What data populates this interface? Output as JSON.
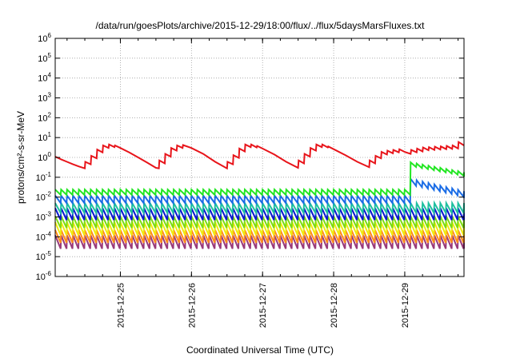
{
  "chart_data": {
    "type": "line",
    "title": "/data/run/goesPlots/archive/2015-12-29/18:00/flux/../flux/5daysMarsFluxes.txt",
    "xlabel": "Coordinated Universal Time (UTC)",
    "ylabel": "protons/cm²-s-sr-MeV",
    "yscale": "log",
    "ylim": [
      1e-06,
      1000000.0
    ],
    "y_ticks": [
      {
        "value": 1e-06,
        "base": "10",
        "exp": "-6"
      },
      {
        "value": 1e-05,
        "base": "10",
        "exp": "-5"
      },
      {
        "value": 0.0001,
        "base": "10",
        "exp": "-4"
      },
      {
        "value": 0.001,
        "base": "10",
        "exp": "-3"
      },
      {
        "value": 0.01,
        "base": "10",
        "exp": "-2"
      },
      {
        "value": 0.1,
        "base": "10",
        "exp": "-1"
      },
      {
        "value": 1,
        "base": "10",
        "exp": "0"
      },
      {
        "value": 10,
        "base": "10",
        "exp": "1"
      },
      {
        "value": 100,
        "base": "10",
        "exp": "2"
      },
      {
        "value": 1000,
        "base": "10",
        "exp": "3"
      },
      {
        "value": 10000,
        "base": "10",
        "exp": "4"
      },
      {
        "value": 100000,
        "base": "10",
        "exp": "5"
      },
      {
        "value": 1000000,
        "base": "10",
        "exp": "6"
      }
    ],
    "xlim": [
      "2015-12-24 02:00",
      "2015-12-29 20:00"
    ],
    "x_ticks": [
      "2015-12-25",
      "2015-12-26",
      "2015-12-27",
      "2015-12-28",
      "2015-12-29"
    ],
    "grid": true,
    "series": [
      {
        "color": "#e8141a",
        "x": [
          "2015-12-24 02:00",
          "2015-12-24 04:00",
          "2015-12-24 06:00",
          "2015-12-24 08:00",
          "2015-12-24 10:00",
          "2015-12-24 12:00",
          "2015-12-24 12:10",
          "2015-12-24 14:00",
          "2015-12-24 14:10",
          "2015-12-24 16:00",
          "2015-12-24 16:10",
          "2015-12-24 18:00",
          "2015-12-24 18:10",
          "2015-12-24 20:00",
          "2015-12-24 20:10",
          "2015-12-24 22:00",
          "2015-12-24 22:10",
          "2015-12-25 00:00",
          "2015-12-25 03:00",
          "2015-12-25 06:00",
          "2015-12-25 09:00",
          "2015-12-25 12:00",
          "2015-12-25 13:00",
          "2015-12-25 13:10",
          "2015-12-25 15:00",
          "2015-12-25 15:10",
          "2015-12-25 17:00",
          "2015-12-25 17:10",
          "2015-12-25 19:00",
          "2015-12-25 19:10",
          "2015-12-25 21:00",
          "2015-12-25 21:10",
          "2015-12-26 00:00",
          "2015-12-26 04:00",
          "2015-12-26 08:00",
          "2015-12-26 12:00",
          "2015-12-26 12:10",
          "2015-12-26 14:00",
          "2015-12-26 14:10",
          "2015-12-26 16:00",
          "2015-12-26 16:10",
          "2015-12-26 18:00",
          "2015-12-26 18:10",
          "2015-12-26 20:00",
          "2015-12-26 20:10",
          "2015-12-26 22:00",
          "2015-12-26 22:10",
          "2015-12-27 00:00",
          "2015-12-27 04:00",
          "2015-12-27 08:00",
          "2015-12-27 12:00",
          "2015-12-27 12:10",
          "2015-12-27 14:00",
          "2015-12-27 14:10",
          "2015-12-27 16:00",
          "2015-12-27 16:10",
          "2015-12-27 18:00",
          "2015-12-27 18:10",
          "2015-12-27 20:00",
          "2015-12-27 20:10",
          "2015-12-27 22:00",
          "2015-12-27 22:10",
          "2015-12-28 00:00",
          "2015-12-28 04:00",
          "2015-12-28 08:00",
          "2015-12-28 12:00",
          "2015-12-28 12:10",
          "2015-12-28 14:00",
          "2015-12-28 14:10",
          "2015-12-28 16:00",
          "2015-12-28 16:10",
          "2015-12-28 18:00",
          "2015-12-28 18:10",
          "2015-12-28 20:00",
          "2015-12-28 20:10",
          "2015-12-28 22:00",
          "2015-12-28 22:10",
          "2015-12-29 00:00",
          "2015-12-29 02:00",
          "2015-12-29 02:10",
          "2015-12-29 04:00",
          "2015-12-29 04:10",
          "2015-12-29 06:00",
          "2015-12-29 06:10",
          "2015-12-29 08:00",
          "2015-12-29 08:10",
          "2015-12-29 10:00",
          "2015-12-29 10:10",
          "2015-12-29 12:00",
          "2015-12-29 12:10",
          "2015-12-29 14:00",
          "2015-12-29 14:10",
          "2015-12-29 16:00",
          "2015-12-29 16:10",
          "2015-12-29 18:00",
          "2015-12-29 18:10",
          "2015-12-29 20:00"
        ],
        "y": [
          1.1,
          0.8,
          0.6,
          0.45,
          0.35,
          0.28,
          0.6,
          0.45,
          1.2,
          0.9,
          2.5,
          1.8,
          4.0,
          3.0,
          4.5,
          3.3,
          4.0,
          3.0,
          1.8,
          1.0,
          0.55,
          0.3,
          0.28,
          0.7,
          0.5,
          1.5,
          1.1,
          3.0,
          2.2,
          4.0,
          3.0,
          4.2,
          3.0,
          1.5,
          0.6,
          0.28,
          0.6,
          0.45,
          1.3,
          0.95,
          2.8,
          2.0,
          4.5,
          3.3,
          4.5,
          3.2,
          3.8,
          2.8,
          1.4,
          0.6,
          0.3,
          0.7,
          0.5,
          1.5,
          1.1,
          3.0,
          2.2,
          4.5,
          3.3,
          4.5,
          3.2,
          3.6,
          2.6,
          1.3,
          0.6,
          0.32,
          0.7,
          0.5,
          1.2,
          0.9,
          1.9,
          1.4,
          2.2,
          1.6,
          2.4,
          1.8,
          2.6,
          1.9,
          1.5,
          2.4,
          1.8,
          2.8,
          2.0,
          3.2,
          2.3,
          3.3,
          2.4,
          3.5,
          2.5,
          3.6,
          2.6,
          3.8,
          2.7,
          4.0,
          2.8,
          6.0,
          4.0
        ]
      },
      {
        "color": "#22e622",
        "sawtooth": {
          "y_high": 0.024,
          "y_low": 0.013
        },
        "step_to": {
          "at": "2015-12-29 01:00",
          "y_high": 0.6,
          "y_low": 0.35,
          "end": 0.18
        }
      },
      {
        "color": "#1a6ce6",
        "sawtooth": {
          "y_high": 0.012,
          "y_low": 0.005
        },
        "step_to": {
          "at": "2015-12-29 01:00",
          "y_high": 0.09,
          "y_low": 0.04,
          "end": 0.02
        }
      },
      {
        "color": "#20c0a0",
        "sawtooth": {
          "y_high": 0.005,
          "y_low": 0.0016
        }
      },
      {
        "color": "#0a18d0",
        "sawtooth": {
          "y_high": 0.0028,
          "y_low": 0.0007
        }
      },
      {
        "color": "#7cdc10",
        "sawtooth": {
          "y_high": 0.0011,
          "y_low": 0.00028
        }
      },
      {
        "color": "#f0ea10",
        "sawtooth": {
          "y_high": 0.00055,
          "y_low": 0.00012
        }
      },
      {
        "color": "#ff8c1a",
        "sawtooth": {
          "y_high": 0.00022,
          "y_low": 5e-05
        }
      },
      {
        "color": "#9a3a7a",
        "sawtooth": {
          "y_high": 0.00012,
          "y_low": 2.5e-05
        }
      }
    ],
    "sawtooth_period_hours": 2
  }
}
